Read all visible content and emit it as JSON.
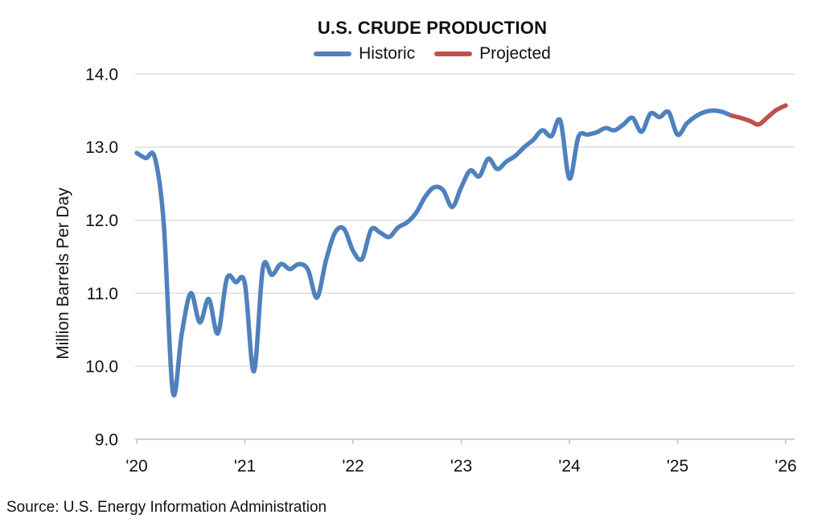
{
  "title": "U.S. CRUDE PRODUCTION",
  "y_axis_title": "Million Barrels Per Day",
  "source": "Source: U.S. Energy Information Administration",
  "legend": {
    "items": [
      {
        "label": "Historic",
        "color": "#4F81BD"
      },
      {
        "label": "Projected",
        "color": "#C0504D"
      }
    ]
  },
  "chart_data": {
    "type": "line",
    "title": "U.S. CRUDE PRODUCTION",
    "xlabel": "",
    "ylabel": "Million Barrels Per Day",
    "ylim": [
      9.0,
      14.0
    ],
    "yticks": [
      9.0,
      10.0,
      11.0,
      12.0,
      13.0,
      14.0
    ],
    "ytick_labels": [
      "9.0",
      "10.0",
      "11.0",
      "12.0",
      "13.0",
      "14.0"
    ],
    "xtick_labels": [
      "'20",
      "'21",
      "'22",
      "'23",
      "'24",
      "'25",
      "'26"
    ],
    "x_unit": "month",
    "x_range": [
      "2020-01",
      "2026-01"
    ],
    "grid": "horizontal",
    "legend_position": "top-center",
    "line_smoothing": true,
    "units": "Million Barrels Per Day",
    "series": [
      {
        "name": "Historic",
        "color": "#4F81BD",
        "start": "2020-01",
        "start_index": 0,
        "values": [
          12.92,
          12.85,
          12.86,
          11.95,
          9.65,
          10.45,
          11.0,
          10.6,
          10.92,
          10.45,
          11.2,
          11.15,
          11.13,
          9.93,
          11.35,
          11.25,
          11.4,
          11.33,
          11.4,
          11.32,
          10.94,
          11.45,
          11.83,
          11.88,
          11.58,
          11.47,
          11.87,
          11.83,
          11.77,
          11.9,
          11.97,
          12.1,
          12.32,
          12.45,
          12.41,
          12.18,
          12.45,
          12.68,
          12.6,
          12.84,
          12.7,
          12.8,
          12.88,
          13.0,
          13.1,
          13.23,
          13.15,
          13.36,
          12.57,
          13.14,
          13.17,
          13.2,
          13.26,
          13.23,
          13.31,
          13.4,
          13.21,
          13.46,
          13.41,
          13.48,
          13.17,
          13.32,
          13.42,
          13.48,
          13.5,
          13.48,
          13.43
        ]
      },
      {
        "name": "Projected",
        "color": "#C0504D",
        "start": "2025-07",
        "start_index": 66,
        "values": [
          13.43,
          13.4,
          13.36,
          13.31,
          13.41,
          13.51,
          13.57
        ]
      }
    ]
  }
}
